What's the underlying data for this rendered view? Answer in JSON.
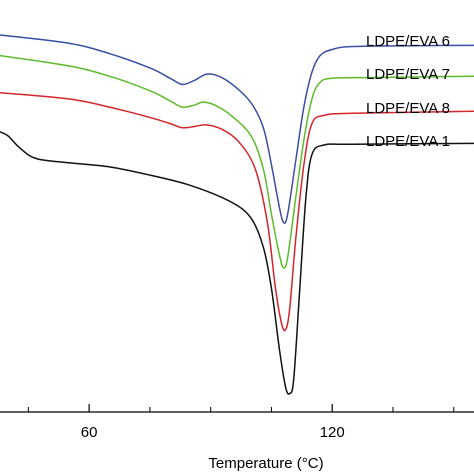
{
  "chart_data": {
    "type": "line",
    "title": "",
    "xlabel": "Temperature (°C)",
    "ylabel": "",
    "xlim": [
      38,
      155
    ],
    "x_ticks": [
      60,
      120
    ],
    "grid": false,
    "legend": "labels at right end of curves",
    "series": [
      {
        "name": "LDPE/EVA 6",
        "color": "#3a4fa3",
        "points": [
          [
            38,
            0.915
          ],
          [
            55,
            0.895
          ],
          [
            65,
            0.87
          ],
          [
            75,
            0.835
          ],
          [
            80,
            0.81
          ],
          [
            83,
            0.795
          ],
          [
            86,
            0.805
          ],
          [
            89,
            0.82
          ],
          [
            92,
            0.815
          ],
          [
            96,
            0.79
          ],
          [
            100,
            0.75
          ],
          [
            103,
            0.69
          ],
          [
            105,
            0.6
          ],
          [
            107,
            0.495
          ],
          [
            108,
            0.46
          ],
          [
            109,
            0.48
          ],
          [
            111,
            0.61
          ],
          [
            113,
            0.74
          ],
          [
            115,
            0.825
          ],
          [
            117,
            0.865
          ],
          [
            120,
            0.88
          ],
          [
            125,
            0.887
          ],
          [
            140,
            0.889
          ],
          [
            155,
            0.89
          ]
        ]
      },
      {
        "name": "LDPE/EVA 7",
        "color": "#5dbb2c",
        "points": [
          [
            38,
            0.865
          ],
          [
            55,
            0.84
          ],
          [
            65,
            0.815
          ],
          [
            75,
            0.78
          ],
          [
            80,
            0.755
          ],
          [
            83,
            0.74
          ],
          [
            86,
            0.745
          ],
          [
            88,
            0.752
          ],
          [
            91,
            0.745
          ],
          [
            95,
            0.72
          ],
          [
            100,
            0.67
          ],
          [
            103,
            0.59
          ],
          [
            105,
            0.48
          ],
          [
            107,
            0.38
          ],
          [
            108,
            0.35
          ],
          [
            109,
            0.375
          ],
          [
            111,
            0.52
          ],
          [
            113,
            0.66
          ],
          [
            115,
            0.76
          ],
          [
            117,
            0.8
          ],
          [
            120,
            0.81
          ],
          [
            130,
            0.812
          ],
          [
            155,
            0.815
          ]
        ]
      },
      {
        "name": "LDPE/EVA 8",
        "color": "#d4262a",
        "points": [
          [
            38,
            0.775
          ],
          [
            55,
            0.76
          ],
          [
            65,
            0.74
          ],
          [
            75,
            0.715
          ],
          [
            80,
            0.7
          ],
          [
            83,
            0.69
          ],
          [
            86,
            0.693
          ],
          [
            89,
            0.697
          ],
          [
            93,
            0.685
          ],
          [
            97,
            0.655
          ],
          [
            101,
            0.59
          ],
          [
            104,
            0.46
          ],
          [
            106,
            0.3
          ],
          [
            107.5,
            0.215
          ],
          [
            108.5,
            0.2
          ],
          [
            109.5,
            0.25
          ],
          [
            111,
            0.42
          ],
          [
            113,
            0.6
          ],
          [
            115,
            0.7
          ],
          [
            118,
            0.72
          ],
          [
            125,
            0.725
          ],
          [
            155,
            0.73
          ]
        ]
      },
      {
        "name": "LDPE/EVA  1",
        "color": "#111111",
        "points": [
          [
            38,
            0.68
          ],
          [
            40,
            0.67
          ],
          [
            43,
            0.64
          ],
          [
            47,
            0.615
          ],
          [
            55,
            0.605
          ],
          [
            65,
            0.595
          ],
          [
            75,
            0.575
          ],
          [
            85,
            0.55
          ],
          [
            95,
            0.51
          ],
          [
            100,
            0.47
          ],
          [
            103,
            0.4
          ],
          [
            105,
            0.3
          ],
          [
            107,
            0.15
          ],
          [
            108.5,
            0.06
          ],
          [
            109.5,
            0.045
          ],
          [
            110.5,
            0.08
          ],
          [
            112,
            0.3
          ],
          [
            113.5,
            0.52
          ],
          [
            115,
            0.625
          ],
          [
            118,
            0.648
          ],
          [
            125,
            0.65
          ],
          [
            155,
            0.652
          ]
        ]
      }
    ]
  }
}
